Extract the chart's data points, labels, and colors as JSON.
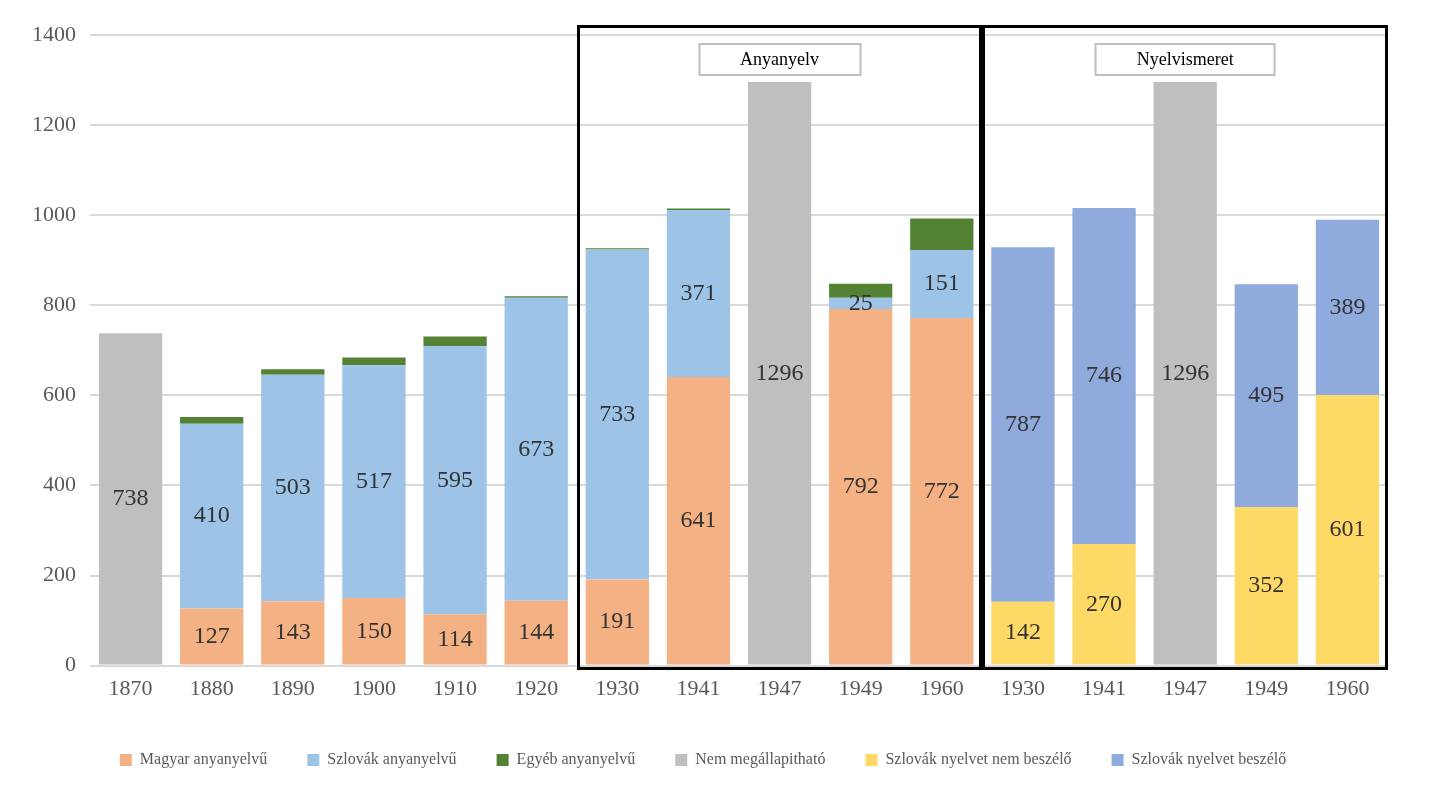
{
  "chart_data": {
    "type": "bar",
    "stacked": true,
    "categories": [
      "1870",
      "1880",
      "1890",
      "1900",
      "1910",
      "1920",
      "1930",
      "1941",
      "1947",
      "1949",
      "1960",
      "1930",
      "1941",
      "1947",
      "1949",
      "1960"
    ],
    "series": [
      {
        "name": "Magyar anyanyelvű",
        "color": "#f4b183",
        "values": [
          null,
          127,
          143,
          150,
          114,
          144,
          191,
          641,
          null,
          792,
          772,
          null,
          null,
          null,
          null,
          null
        ],
        "value_labels": [
          null,
          "127",
          "143",
          "150",
          "114",
          "144",
          "191",
          "641",
          null,
          "792",
          "772",
          null,
          null,
          null,
          null,
          null
        ]
      },
      {
        "name": "Szlovák anyanyelvű",
        "color": "#9dc3e6",
        "values": [
          null,
          410,
          503,
          517,
          595,
          673,
          733,
          371,
          null,
          25,
          151,
          null,
          null,
          null,
          null,
          null
        ],
        "value_labels": [
          null,
          "410",
          "503",
          "517",
          "595",
          "673",
          "733",
          "371",
          null,
          "25",
          "151",
          null,
          null,
          null,
          null,
          null
        ]
      },
      {
        "name": "Egyéb anyanyelvű",
        "color": "#548235",
        "values": [
          null,
          15,
          12,
          17,
          22,
          3,
          3,
          3,
          null,
          31,
          70,
          null,
          null,
          null,
          null,
          null
        ]
      },
      {
        "name": "Nem megállapitható",
        "color": "#bfbfbf",
        "values": [
          738,
          null,
          null,
          null,
          null,
          null,
          null,
          null,
          1296,
          null,
          null,
          null,
          null,
          1296,
          null,
          null
        ],
        "value_labels": [
          "738",
          null,
          null,
          null,
          null,
          null,
          null,
          null,
          "1296",
          null,
          null,
          null,
          null,
          "1296",
          null,
          null
        ]
      },
      {
        "name": "Szlovák nyelvet nem beszélő",
        "color": "#ffd966",
        "values": [
          null,
          null,
          null,
          null,
          null,
          null,
          null,
          null,
          null,
          null,
          null,
          142,
          270,
          null,
          352,
          601
        ],
        "value_labels": [
          null,
          null,
          null,
          null,
          null,
          null,
          null,
          null,
          null,
          null,
          null,
          "142",
          "270",
          null,
          "352",
          "601"
        ]
      },
      {
        "name": "Szlovák nyelvet beszélő",
        "color": "#8faadc",
        "values": [
          null,
          null,
          null,
          null,
          null,
          null,
          null,
          null,
          null,
          null,
          null,
          787,
          746,
          null,
          495,
          389
        ],
        "value_labels": [
          null,
          null,
          null,
          null,
          null,
          null,
          null,
          null,
          null,
          null,
          null,
          "787",
          "746",
          null,
          "495",
          "389"
        ]
      }
    ],
    "ylim": [
      0,
      1400
    ],
    "yticks": [
      0,
      200,
      400,
      600,
      800,
      1000,
      1200,
      1400
    ],
    "grid": "y",
    "legend": "bottom",
    "annotations": [
      "Anyanyelv",
      "Nyelvismeret"
    ]
  }
}
